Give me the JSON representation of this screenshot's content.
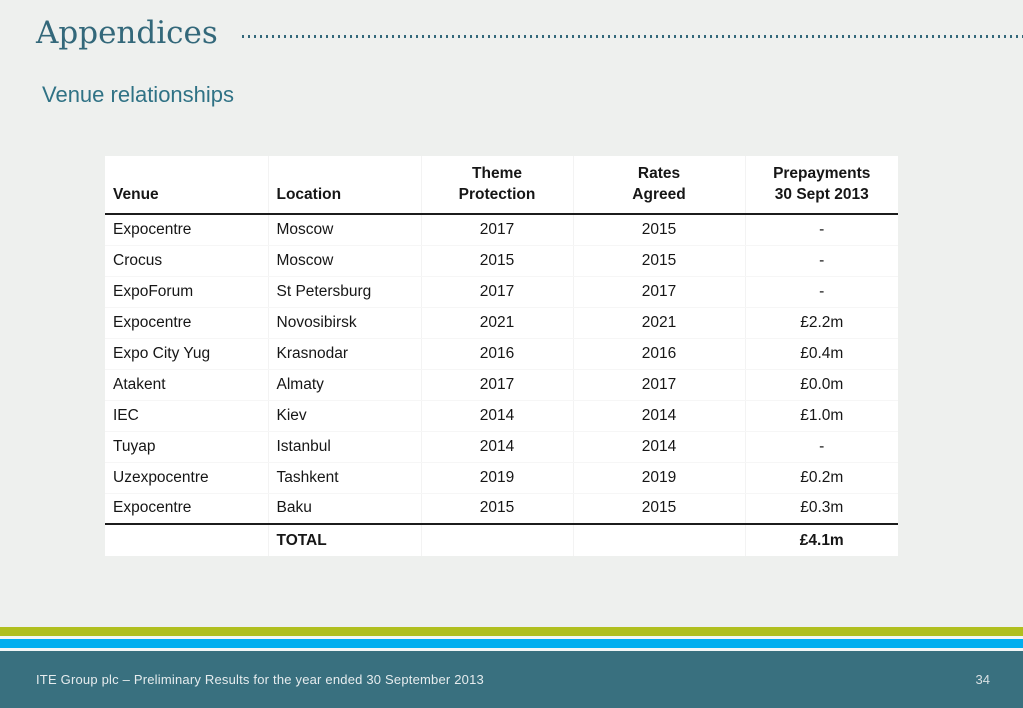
{
  "header": {
    "title": "Appendices",
    "subtitle": "Venue relationships"
  },
  "table": {
    "columns": [
      {
        "line1": "",
        "line2": "Venue"
      },
      {
        "line1": "",
        "line2": "Location"
      },
      {
        "line1": "Theme",
        "line2": "Protection"
      },
      {
        "line1": "Rates",
        "line2": "Agreed"
      },
      {
        "line1": "Prepayments",
        "line2": "30 Sept 2013"
      }
    ],
    "rows": [
      {
        "venue": "Expocentre",
        "location": "Moscow",
        "theme_protection": "2017",
        "rates_agreed": "2015",
        "prepayments": "-"
      },
      {
        "venue": "Crocus",
        "location": "Moscow",
        "theme_protection": "2015",
        "rates_agreed": "2015",
        "prepayments": "-"
      },
      {
        "venue": "ExpoForum",
        "location": "St Petersburg",
        "theme_protection": "2017",
        "rates_agreed": "2017",
        "prepayments": "-"
      },
      {
        "venue": "Expocentre",
        "location": "Novosibirsk",
        "theme_protection": "2021",
        "rates_agreed": "2021",
        "prepayments": "£2.2m"
      },
      {
        "venue": "Expo City Yug",
        "location": "Krasnodar",
        "theme_protection": "2016",
        "rates_agreed": "2016",
        "prepayments": "£0.4m"
      },
      {
        "venue": "Atakent",
        "location": "Almaty",
        "theme_protection": "2017",
        "rates_agreed": "2017",
        "prepayments": "£0.0m"
      },
      {
        "venue": "IEC",
        "location": "Kiev",
        "theme_protection": "2014",
        "rates_agreed": "2014",
        "prepayments": "£1.0m"
      },
      {
        "venue": "Tuyap",
        "location": "Istanbul",
        "theme_protection": "2014",
        "rates_agreed": "2014",
        "prepayments": "-"
      },
      {
        "venue": "Uzexpocentre",
        "location": "Tashkent",
        "theme_protection": "2019",
        "rates_agreed": "2019",
        "prepayments": "£0.2m"
      },
      {
        "venue": "Expocentre",
        "location": "Baku",
        "theme_protection": "2015",
        "rates_agreed": "2015",
        "prepayments": "£0.3m"
      }
    ],
    "total": {
      "label": "TOTAL",
      "prepayments": "£4.1m"
    }
  },
  "footer": {
    "text": "ITE Group plc – Preliminary Results for the year ended 30 September 2013",
    "page_number": "34"
  },
  "colors": {
    "background": "#eef0ee",
    "title_teal": "#33687a",
    "subtitle_teal": "#2f7285",
    "footer_bar_teal": "#39707f",
    "stripe_olive": "#b0bf1e",
    "stripe_blue": "#00aeef",
    "table_rule_black": "#1c1c1c"
  }
}
